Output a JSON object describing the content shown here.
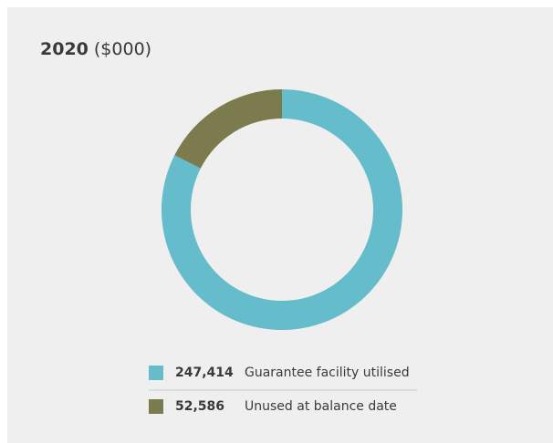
{
  "chart_data": {
    "type": "donut",
    "title": "2020",
    "title_unit": "($000)",
    "categories": [
      "Guarantee facility utilised",
      "Unused at balance date"
    ],
    "values": [
      247414,
      52586
    ],
    "value_labels": [
      "247,414",
      "52,586"
    ],
    "colors": [
      "#65bccb",
      "#7b7b4e"
    ]
  }
}
